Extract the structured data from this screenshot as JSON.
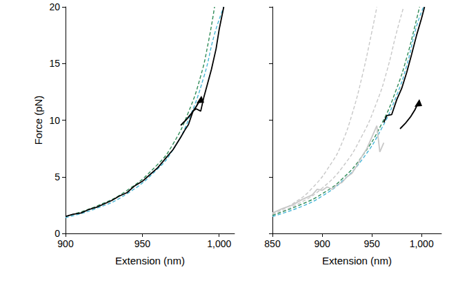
{
  "chart_data": [
    {
      "type": "line",
      "x_label": "Extension (nm)",
      "y_label": "Force (pN)",
      "xlim": [
        900,
        1010
      ],
      "xticks": [
        900,
        950,
        1000
      ],
      "ylim": [
        0,
        20
      ],
      "yticks": [
        0,
        5,
        10,
        15,
        20
      ],
      "grid": false,
      "series": [
        {
          "color": "#2e8b57",
          "line_style": "dashed",
          "x": [
            900,
            920,
            940,
            960,
            970,
            980,
            988,
            993,
            997
          ],
          "values": [
            1.5,
            2.4,
            3.8,
            6.1,
            7.9,
            10.7,
            13.9,
            16.9,
            20.0
          ]
        },
        {
          "color": "#45b5d6",
          "line_style": "dashed",
          "x": [
            900,
            920,
            940,
            960,
            970,
            980,
            990,
            997,
            1003
          ],
          "values": [
            1.4,
            2.2,
            3.5,
            5.7,
            7.4,
            10.0,
            13.8,
            17.6,
            20.0
          ]
        },
        {
          "color": "#000000",
          "line_style": "solid",
          "x": [
            900,
            905,
            910,
            915,
            920,
            925,
            930,
            935,
            940,
            945,
            950,
            955,
            960,
            965,
            970,
            975,
            978,
            980,
            983,
            985,
            988,
            990,
            993,
            995,
            998,
            1000,
            1003
          ],
          "values": [
            1.5,
            1.7,
            1.8,
            2.1,
            2.3,
            2.6,
            2.9,
            3.3,
            3.6,
            4.2,
            4.6,
            5.2,
            5.8,
            6.6,
            7.4,
            8.5,
            9.2,
            9.6,
            10.8,
            11.0,
            10.8,
            12.0,
            13.5,
            14.5,
            16.3,
            18.0,
            20.0
          ]
        }
      ]
    },
    {
      "type": "line",
      "x_label": "Extension (nm)",
      "xlim": [
        850,
        1020
      ],
      "xticks": [
        850,
        900,
        950,
        1000
      ],
      "ylim": [
        0,
        20
      ],
      "yticks": [
        0,
        5,
        10,
        15,
        20
      ],
      "grid": false,
      "tick_labels": "x",
      "series": [
        {
          "color": "#c8c8c8",
          "line_style": "dashed",
          "x": [
            850,
            870,
            890,
            910,
            920,
            930,
            940,
            950,
            955
          ],
          "values": [
            1.7,
            2.6,
            4.0,
            6.3,
            8.0,
            10.5,
            13.8,
            17.8,
            20.0
          ]
        },
        {
          "color": "#c8c8c8",
          "line_style": "dashed",
          "x": [
            850,
            880,
            900,
            920,
            940,
            955,
            965,
            975,
            982
          ],
          "values": [
            1.6,
            2.8,
            4.0,
            5.8,
            8.6,
            11.6,
            14.3,
            17.8,
            20.0
          ]
        },
        {
          "color": "#c8c8c8",
          "line_style": "solid",
          "x": [
            850,
            860,
            870,
            880,
            890,
            895,
            900,
            905,
            910,
            915,
            920,
            925,
            930,
            935,
            940,
            945,
            950,
            955,
            958,
            962
          ],
          "values": [
            1.8,
            2.2,
            2.5,
            3.0,
            3.4,
            3.9,
            3.8,
            4.1,
            3.9,
            4.3,
            4.5,
            5.0,
            5.3,
            6.0,
            6.8,
            7.5,
            8.5,
            9.5,
            7.2,
            8.0
          ]
        },
        {
          "color": "#2e8b57",
          "line_style": "dashed",
          "x": [
            850,
            880,
            900,
            920,
            940,
            960,
            975,
            985,
            993,
            998
          ],
          "values": [
            1.6,
            2.6,
            3.5,
            4.8,
            6.8,
            9.7,
            12.8,
            15.5,
            18.2,
            20.0
          ]
        },
        {
          "color": "#45b5d6",
          "line_style": "dashed",
          "x": [
            850,
            880,
            900,
            920,
            940,
            960,
            975,
            985,
            995,
            1002
          ],
          "values": [
            1.5,
            2.4,
            3.3,
            4.6,
            6.5,
            9.3,
            12.2,
            14.8,
            18.3,
            20.0
          ]
        },
        {
          "color": "#000000",
          "line_style": "solid",
          "x": [
            962,
            965,
            970,
            975,
            980,
            985,
            990,
            995,
            1000,
            1003
          ],
          "values": [
            9.8,
            10.4,
            10.5,
            11.8,
            12.8,
            14.2,
            15.8,
            17.5,
            19.0,
            20.0
          ]
        }
      ]
    }
  ]
}
